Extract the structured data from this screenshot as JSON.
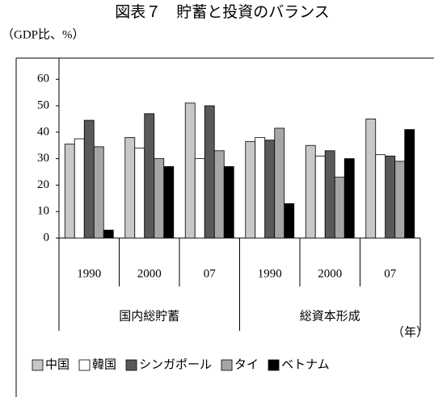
{
  "chart_data": {
    "type": "bar",
    "title": "図表７　貯蓄と投資のバランス",
    "y_label": "（GDP比、%）",
    "x_label": "（年）",
    "groups": [
      {
        "name": "国内総貯蓄",
        "categories": [
          "1990",
          "2000",
          "07"
        ]
      },
      {
        "name": "総資本形成",
        "categories": [
          "1990",
          "2000",
          "07"
        ]
      }
    ],
    "series": [
      {
        "name": "中国",
        "color": "#c8c8c8",
        "values": [
          35.5,
          38,
          51,
          36.5,
          35,
          45
        ]
      },
      {
        "name": "韓国",
        "color": "#ffffff",
        "values": [
          37.5,
          34,
          30,
          38,
          31,
          31.5
        ]
      },
      {
        "name": "シンガポール",
        "color": "#595959",
        "values": [
          44.5,
          47,
          50,
          37,
          33,
          31
        ]
      },
      {
        "name": "タイ",
        "color": "#a6a6a6",
        "values": [
          34.5,
          30,
          33,
          41.5,
          23,
          29
        ]
      },
      {
        "name": "ベトナム",
        "color": "#000000",
        "values": [
          3,
          27,
          27,
          13,
          30,
          41
        ]
      }
    ],
    "ylim": [
      0,
      68
    ],
    "yticks": [
      0,
      10,
      20,
      30,
      40,
      50,
      60
    ],
    "legend": "bottom"
  }
}
